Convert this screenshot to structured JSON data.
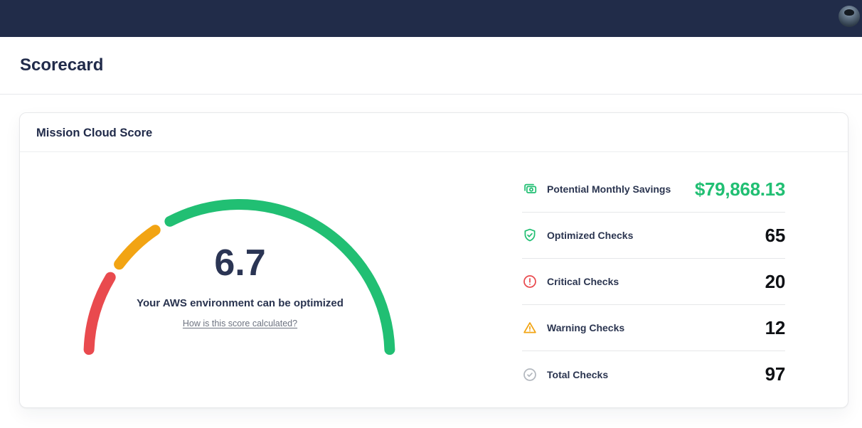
{
  "theme": {
    "navbar_bg": "#212c49",
    "accent_green": "#21bf73",
    "alert_red": "#e94a4e",
    "warning_orange": "#f2a413",
    "muted_gray": "#b3b8bf"
  },
  "page": {
    "title": "Scorecard"
  },
  "card": {
    "title": "Mission Cloud Score"
  },
  "gauge": {
    "score": "6.7",
    "subtitle": "Your AWS environment can be optimized",
    "link_label": "How is this score calculated?"
  },
  "stats": [
    {
      "icon": "cash-icon",
      "icon_color": "#21bf73",
      "label": "Potential Monthly Savings",
      "value": "$79,868.13",
      "value_color": "#21bf73"
    },
    {
      "icon": "shield-check-icon",
      "icon_color": "#21bf73",
      "label": "Optimized Checks",
      "value": "65",
      "value_color": "#0f1115"
    },
    {
      "icon": "alert-circle-icon",
      "icon_color": "#e94a4e",
      "label": "Critical Checks",
      "value": "20",
      "value_color": "#0f1115"
    },
    {
      "icon": "alert-triangle-icon",
      "icon_color": "#f2a413",
      "label": "Warning Checks",
      "value": "12",
      "value_color": "#0f1115"
    },
    {
      "icon": "check-circle-icon",
      "icon_color": "#b3b8bf",
      "label": "Total Checks",
      "value": "97",
      "value_color": "#0f1115"
    }
  ],
  "chart_data": {
    "type": "gauge",
    "title": "Mission Cloud Score",
    "score": 6.7,
    "score_min": 0,
    "score_max": 10,
    "arc": {
      "start_deg": 180,
      "end_deg": 0,
      "radius_px": 211.5,
      "stroke_px": 15
    },
    "segments": [
      {
        "name": "critical",
        "color": "#e94a4e",
        "from_deg": 178,
        "to_deg": 149,
        "represents": "Critical Checks 20 of 97"
      },
      {
        "name": "warning",
        "color": "#f2a413",
        "from_deg": 143,
        "to_deg": 124,
        "represents": "Warning Checks 12 of 97"
      },
      {
        "name": "optimized",
        "color": "#21bf73",
        "from_deg": 117.5,
        "to_deg": 2,
        "represents": "Optimized Checks 65 of 97"
      }
    ],
    "center_label": "Your AWS environment can be optimized",
    "link": "How is this score calculated?"
  }
}
